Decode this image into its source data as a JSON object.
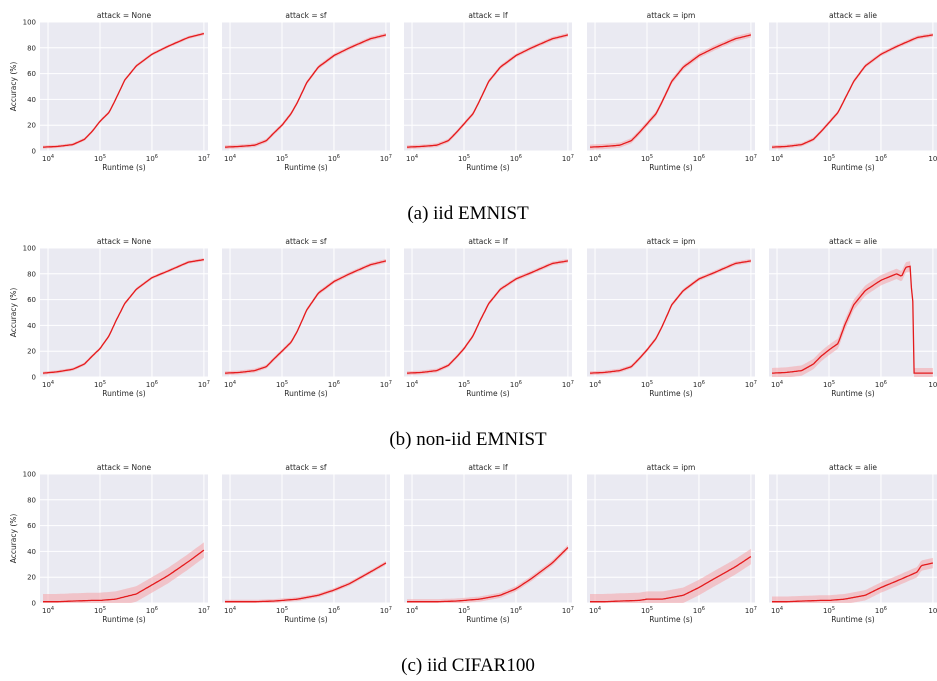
{
  "figure": {
    "panel_titles": [
      "attack = None",
      "attack = sf",
      "attack = lf",
      "attack = ipm",
      "attack = alie"
    ],
    "xlabel": "Runtime (s)",
    "ylabel": "Accuracy (%)",
    "yticks": [
      "0",
      "20",
      "40",
      "60",
      "80",
      "100"
    ],
    "xticks": [
      "10^4",
      "10^5",
      "10^6",
      "10^7"
    ],
    "last_panel_xticks": [
      "10^4",
      "10^5",
      "10^6",
      "10"
    ],
    "line_color": "#e41a1c",
    "band_color": "#f4a3a8",
    "plot_background": "#eaeaf2",
    "grid_color": "#ffffff"
  },
  "captions": [
    "(a) iid EMNIST",
    "(b) non-iid EMNIST",
    "(c) iid CIFAR100"
  ],
  "chart_data": [
    {
      "type": "line",
      "row": 0,
      "dataset": "iid EMNIST",
      "x_scale": "log",
      "xlim": [
        7000,
        12000000
      ],
      "ylim": [
        0,
        100
      ],
      "grid": true,
      "panels": [
        {
          "title": "attack = None",
          "points": [
            [
              8000,
              3
            ],
            [
              15000,
              3.5
            ],
            [
              30000,
              5
            ],
            [
              50000,
              9
            ],
            [
              70000,
              15
            ],
            [
              100000,
              23
            ],
            [
              150000,
              30
            ],
            [
              200000,
              40
            ],
            [
              300000,
              55
            ],
            [
              500000,
              66
            ],
            [
              1000000,
              75
            ],
            [
              2000000,
              81
            ],
            [
              5000000,
              88
            ],
            [
              10000000,
              91
            ]
          ],
          "band": 1.2
        },
        {
          "title": "attack = sf",
          "points": [
            [
              8000,
              3
            ],
            [
              15000,
              3.5
            ],
            [
              30000,
              4.5
            ],
            [
              50000,
              8
            ],
            [
              70000,
              14
            ],
            [
              100000,
              20
            ],
            [
              150000,
              29
            ],
            [
              200000,
              38
            ],
            [
              300000,
              53
            ],
            [
              500000,
              65
            ],
            [
              1000000,
              74
            ],
            [
              2000000,
              80
            ],
            [
              5000000,
              87
            ],
            [
              10000000,
              90
            ]
          ],
          "band": 1.5
        },
        {
          "title": "attack = lf",
          "points": [
            [
              8000,
              3
            ],
            [
              15000,
              3.5
            ],
            [
              30000,
              4.5
            ],
            [
              50000,
              8
            ],
            [
              70000,
              14
            ],
            [
              100000,
              21
            ],
            [
              150000,
              29
            ],
            [
              200000,
              39
            ],
            [
              300000,
              54
            ],
            [
              500000,
              65
            ],
            [
              1000000,
              74
            ],
            [
              2000000,
              80
            ],
            [
              5000000,
              87
            ],
            [
              10000000,
              90
            ]
          ],
          "band": 1.5
        },
        {
          "title": "attack = ipm",
          "points": [
            [
              8000,
              3
            ],
            [
              15000,
              3.5
            ],
            [
              30000,
              4.5
            ],
            [
              50000,
              8
            ],
            [
              70000,
              14
            ],
            [
              100000,
              21
            ],
            [
              150000,
              29
            ],
            [
              200000,
              39
            ],
            [
              300000,
              54
            ],
            [
              500000,
              65
            ],
            [
              1000000,
              74
            ],
            [
              2000000,
              80
            ],
            [
              5000000,
              87
            ],
            [
              10000000,
              90
            ]
          ],
          "band": 2
        },
        {
          "title": "attack = alie",
          "points": [
            [
              8000,
              3
            ],
            [
              15000,
              3.5
            ],
            [
              30000,
              5
            ],
            [
              50000,
              9
            ],
            [
              70000,
              15
            ],
            [
              100000,
              22
            ],
            [
              150000,
              30
            ],
            [
              200000,
              40
            ],
            [
              300000,
              54
            ],
            [
              500000,
              66
            ],
            [
              1000000,
              75
            ],
            [
              2000000,
              81
            ],
            [
              5000000,
              88
            ],
            [
              10000000,
              90
            ]
          ],
          "band": 1.5
        }
      ]
    },
    {
      "type": "line",
      "row": 1,
      "dataset": "non-iid EMNIST",
      "x_scale": "log",
      "xlim": [
        7000,
        12000000
      ],
      "ylim": [
        0,
        100
      ],
      "grid": true,
      "panels": [
        {
          "title": "attack = None",
          "points": [
            [
              8000,
              3
            ],
            [
              15000,
              4
            ],
            [
              30000,
              6
            ],
            [
              50000,
              10
            ],
            [
              70000,
              16
            ],
            [
              100000,
              22
            ],
            [
              150000,
              32
            ],
            [
              200000,
              43
            ],
            [
              300000,
              57
            ],
            [
              500000,
              68
            ],
            [
              1000000,
              77
            ],
            [
              2000000,
              82
            ],
            [
              5000000,
              89
            ],
            [
              10000000,
              91
            ]
          ],
          "band": 1.2
        },
        {
          "title": "attack = sf",
          "points": [
            [
              8000,
              3
            ],
            [
              15000,
              3.5
            ],
            [
              30000,
              5
            ],
            [
              50000,
              8
            ],
            [
              70000,
              14
            ],
            [
              100000,
              20
            ],
            [
              150000,
              27
            ],
            [
              200000,
              36
            ],
            [
              300000,
              52
            ],
            [
              500000,
              65
            ],
            [
              1000000,
              74
            ],
            [
              2000000,
              80
            ],
            [
              5000000,
              87
            ],
            [
              10000000,
              90
            ]
          ],
          "band": 1.5
        },
        {
          "title": "attack = lf",
          "points": [
            [
              8000,
              3
            ],
            [
              15000,
              3.5
            ],
            [
              30000,
              5
            ],
            [
              50000,
              9
            ],
            [
              70000,
              15
            ],
            [
              100000,
              22
            ],
            [
              150000,
              32
            ],
            [
              200000,
              43
            ],
            [
              300000,
              57
            ],
            [
              500000,
              68
            ],
            [
              1000000,
              76
            ],
            [
              2000000,
              81
            ],
            [
              5000000,
              88
            ],
            [
              10000000,
              90
            ]
          ],
          "band": 1.5
        },
        {
          "title": "attack = ipm",
          "points": [
            [
              8000,
              3
            ],
            [
              15000,
              3.5
            ],
            [
              30000,
              5
            ],
            [
              50000,
              8
            ],
            [
              70000,
              14
            ],
            [
              100000,
              21
            ],
            [
              150000,
              30
            ],
            [
              200000,
              40
            ],
            [
              300000,
              56
            ],
            [
              500000,
              67
            ],
            [
              1000000,
              76
            ],
            [
              2000000,
              81
            ],
            [
              5000000,
              88
            ],
            [
              10000000,
              90
            ]
          ],
          "band": 1.5
        },
        {
          "title": "attack = alie",
          "points": [
            [
              8000,
              3
            ],
            [
              15000,
              3.5
            ],
            [
              30000,
              5
            ],
            [
              50000,
              10
            ],
            [
              70000,
              16
            ],
            [
              100000,
              21
            ],
            [
              150000,
              26
            ],
            [
              200000,
              40
            ],
            [
              300000,
              56
            ],
            [
              500000,
              67
            ],
            [
              1000000,
              75
            ],
            [
              2000000,
              80
            ],
            [
              2500000,
              78
            ],
            [
              3000000,
              85
            ],
            [
              3800000,
              86
            ],
            [
              3900000,
              60
            ],
            [
              4200000,
              58
            ],
            [
              4300000,
              3
            ],
            [
              6000000,
              3
            ],
            [
              10000000,
              3
            ]
          ],
          "band": 4
        }
      ]
    },
    {
      "type": "line",
      "row": 2,
      "dataset": "iid CIFAR100",
      "x_scale": "log",
      "xlim": [
        7000,
        12000000
      ],
      "ylim": [
        0,
        100
      ],
      "grid": true,
      "panels": [
        {
          "title": "attack = None",
          "points": [
            [
              8000,
              1
            ],
            [
              15000,
              1
            ],
            [
              30000,
              1.5
            ],
            [
              70000,
              2
            ],
            [
              100000,
              2
            ],
            [
              200000,
              3
            ],
            [
              500000,
              7
            ],
            [
              1000000,
              14
            ],
            [
              2000000,
              21
            ],
            [
              5000000,
              32
            ],
            [
              10000000,
              41
            ]
          ],
          "band": 6
        },
        {
          "title": "attack = sf",
          "points": [
            [
              8000,
              1
            ],
            [
              15000,
              1
            ],
            [
              30000,
              1
            ],
            [
              70000,
              1.5
            ],
            [
              100000,
              2
            ],
            [
              200000,
              3
            ],
            [
              500000,
              6
            ],
            [
              1000000,
              10
            ],
            [
              2000000,
              15
            ],
            [
              5000000,
              24
            ],
            [
              10000000,
              31
            ]
          ],
          "band": 1.5
        },
        {
          "title": "attack = lf",
          "points": [
            [
              8000,
              1
            ],
            [
              15000,
              1
            ],
            [
              30000,
              1
            ],
            [
              70000,
              1.5
            ],
            [
              100000,
              2
            ],
            [
              200000,
              3
            ],
            [
              500000,
              6
            ],
            [
              1000000,
              11
            ],
            [
              2000000,
              19
            ],
            [
              5000000,
              31
            ],
            [
              10000000,
              43
            ]
          ],
          "band": 2
        },
        {
          "title": "attack = ipm",
          "points": [
            [
              8000,
              1
            ],
            [
              15000,
              1
            ],
            [
              30000,
              1.5
            ],
            [
              70000,
              2
            ],
            [
              100000,
              3
            ],
            [
              200000,
              3
            ],
            [
              500000,
              6
            ],
            [
              1000000,
              12
            ],
            [
              2000000,
              19
            ],
            [
              5000000,
              28
            ],
            [
              10000000,
              36
            ]
          ],
          "band": 6
        },
        {
          "title": "attack = alie",
          "points": [
            [
              8000,
              1
            ],
            [
              15000,
              1
            ],
            [
              30000,
              1.5
            ],
            [
              70000,
              2
            ],
            [
              100000,
              2
            ],
            [
              200000,
              3
            ],
            [
              500000,
              6
            ],
            [
              1000000,
              12
            ],
            [
              2000000,
              17
            ],
            [
              5000000,
              24
            ],
            [
              6000000,
              29
            ],
            [
              10000000,
              31
            ]
          ],
          "band": 4
        }
      ]
    }
  ]
}
